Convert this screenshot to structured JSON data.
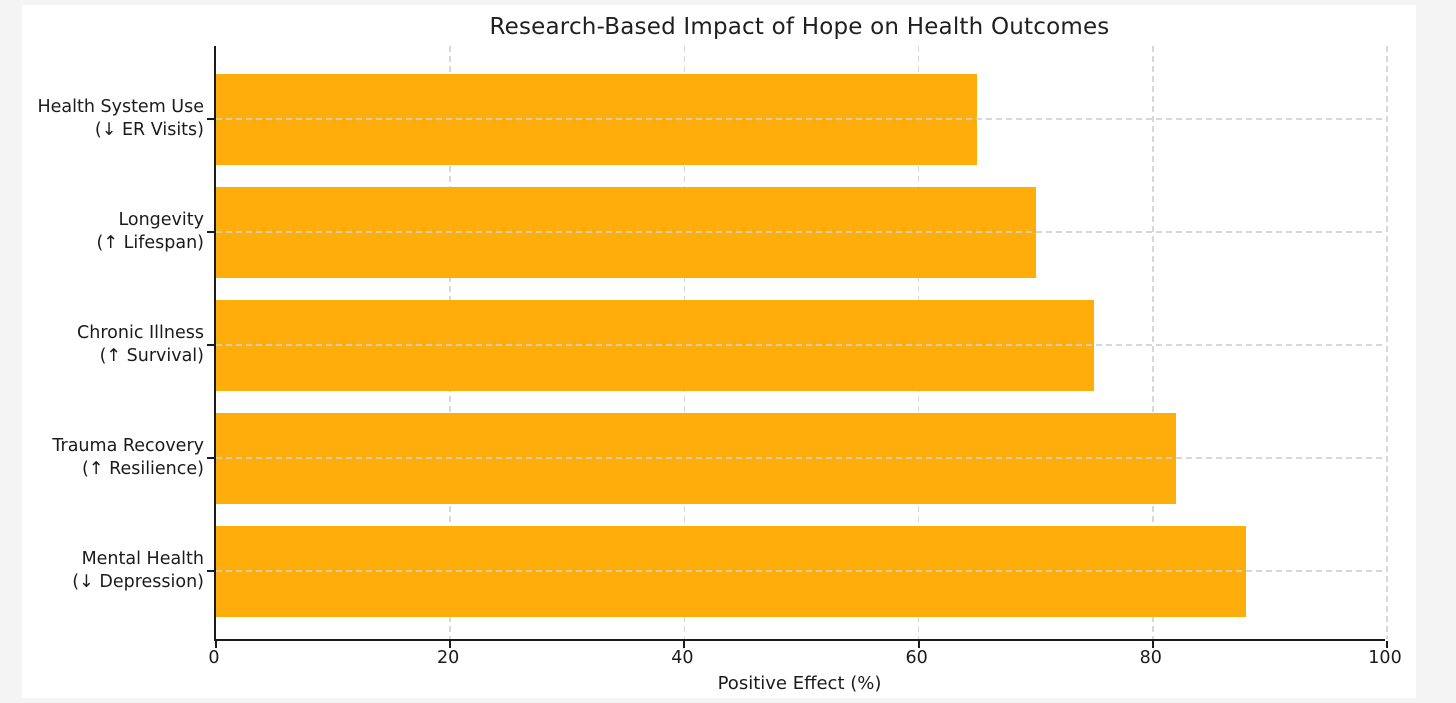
{
  "page": {
    "background_color": "#f4f4f4",
    "figure_background_color": "#ffffff"
  },
  "chart_data": {
    "type": "bar",
    "orientation": "horizontal",
    "title": "Research-Based Impact of Hope on Health Outcomes",
    "xlabel": "Positive Effect (%)",
    "ylabel": "",
    "xlim": [
      0,
      100
    ],
    "xticks": [
      0,
      20,
      40,
      60,
      80,
      100
    ],
    "grid": {
      "show": true,
      "linestyle": "dashed",
      "axes": "both",
      "color": "#d8d8d8"
    },
    "legend": {
      "show": false
    },
    "bar_color": "#FFAD0A",
    "categories": [
      "Health System Use\n(↓ ER Visits)",
      "Longevity\n(↑ Lifespan)",
      "Chronic Illness\n(↑ Survival)",
      "Trauma Recovery\n(↑ Resilience)",
      "Mental Health\n(↓ Depression)"
    ],
    "values": [
      65,
      70,
      75,
      82,
      88
    ],
    "bars": [
      {
        "label_line1": "Health System Use",
        "label_line2": "(↓ ER Visits)",
        "value": 65
      },
      {
        "label_line1": "Longevity",
        "label_line2": "(↑ Lifespan)",
        "value": 70
      },
      {
        "label_line1": "Chronic Illness",
        "label_line2": "(↑ Survival)",
        "value": 75
      },
      {
        "label_line1": "Trauma Recovery",
        "label_line2": "(↑ Resilience)",
        "value": 82
      },
      {
        "label_line1": "Mental Health",
        "label_line2": "(↓ Depression)",
        "value": 88
      }
    ]
  }
}
